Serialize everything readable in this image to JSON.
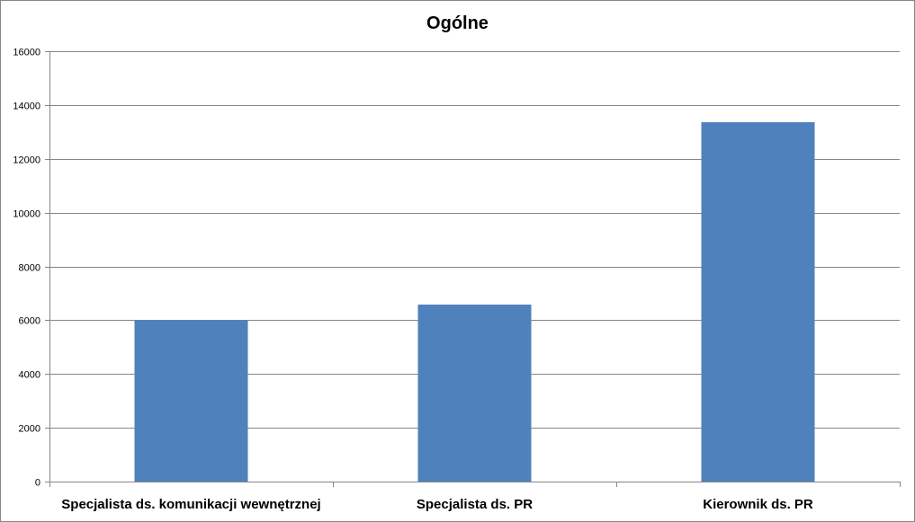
{
  "chart_data": {
    "type": "bar",
    "title": "Ogólne",
    "xlabel": "",
    "ylabel": "",
    "categories": [
      "Specjalista ds. komunikacji wewnętrznej",
      "Specjalista ds. PR",
      "Kierownik ds. PR"
    ],
    "values": [
      6000,
      6580,
      13360
    ],
    "ylim": [
      0,
      16000
    ],
    "yticks": [
      0,
      2000,
      4000,
      6000,
      8000,
      10000,
      12000,
      14000,
      16000
    ],
    "grid": true,
    "legend": "none",
    "bar_color": "#4F81BD",
    "grid_color": "#868686"
  }
}
